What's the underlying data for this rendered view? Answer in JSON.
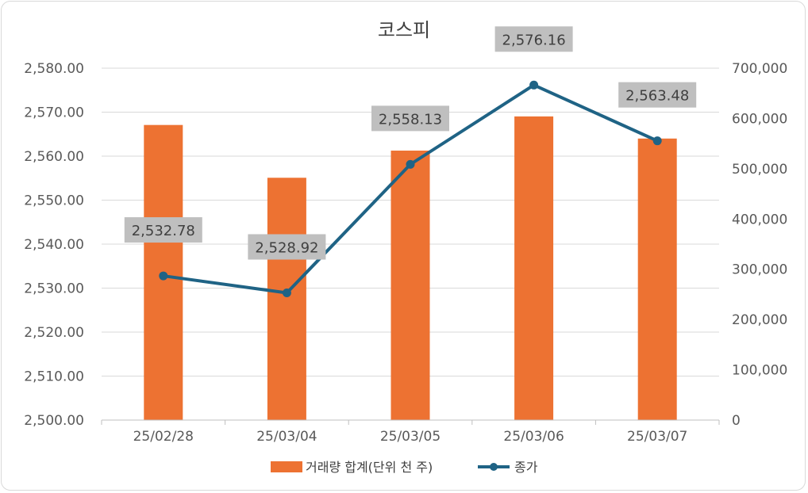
{
  "chart_data": {
    "type": "bar+line",
    "title": "코스피",
    "categories": [
      "25/02/28",
      "25/03/04",
      "25/03/05",
      "25/03/06",
      "25/03/07"
    ],
    "series": [
      {
        "name": "거래량 합계(단위 천 주)",
        "kind": "bar",
        "axis": "right",
        "color": "#ED7232",
        "values": [
          587000,
          482000,
          536000,
          604000,
          560000
        ]
      },
      {
        "name": "종가",
        "kind": "line",
        "axis": "left",
        "color": "#1F6385",
        "values": [
          2532.78,
          2528.92,
          2558.13,
          2576.16,
          2563.48
        ],
        "labels": [
          "2,532.78",
          "2,528.92",
          "2,558.13",
          "2,576.16",
          "2,563.48"
        ]
      }
    ],
    "y_left": {
      "min": 2500,
      "max": 2580,
      "step": 10,
      "ticks": [
        "2,500.00",
        "2,510.00",
        "2,520.00",
        "2,530.00",
        "2,540.00",
        "2,550.00",
        "2,560.00",
        "2,570.00",
        "2,580.00"
      ]
    },
    "y_right": {
      "min": 0,
      "max": 700000,
      "step": 100000,
      "ticks": [
        "0",
        "100,000",
        "200,000",
        "300,000",
        "400,000",
        "500,000",
        "600,000",
        "700,000"
      ]
    },
    "grid": true,
    "legend_position": "bottom",
    "label_box_color": "#BFBFBF"
  }
}
